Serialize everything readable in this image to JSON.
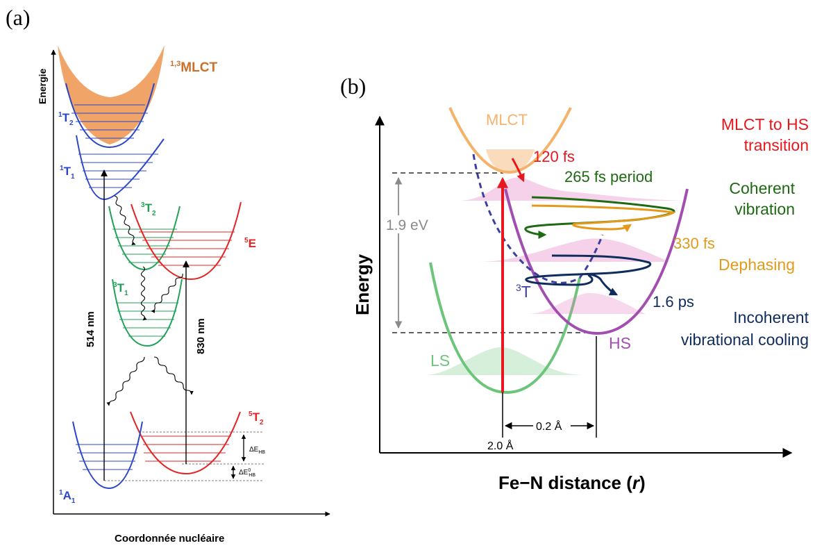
{
  "panel_a": {
    "tag": "(a)",
    "y_axis_label": "Energie",
    "x_axis_label": "Coordonnée nucléaire",
    "states": {
      "mlct": {
        "sup": "1,3",
        "main": "MLCT"
      },
      "t2_singlet": {
        "sup": "1",
        "main": "T",
        "sub": "2"
      },
      "t1_singlet": {
        "sup": "1",
        "main": "T",
        "sub": "1"
      },
      "t2_triplet": {
        "sup": "3",
        "main": "T",
        "sub": "2"
      },
      "t1_triplet": {
        "sup": "3",
        "main": "T",
        "sub": "1"
      },
      "e_quintet": {
        "sup": "5",
        "main": "E"
      },
      "t2_quintet": {
        "sup": "5",
        "main": "T",
        "sub": "2"
      },
      "a1_singlet": {
        "sup": "1",
        "main": "A",
        "sub": "1"
      }
    },
    "wavelength_514": "514 nm",
    "wavelength_830": "830 nm",
    "delta_hb": {
      "main": "ΔE",
      "sub": "HB"
    },
    "delta0_hb": {
      "main": "ΔE",
      "sup": "0",
      "sub": "HB"
    },
    "colors": {
      "blue": "#2b46c8",
      "green": "#1fa257",
      "red": "#e32424",
      "orange": "#f09a57",
      "mlct_text": "#c8702c"
    }
  },
  "panel_b": {
    "tag": "(b)",
    "y_axis_label": "Energy",
    "x_axis_label_main": "Fe−N distance (",
    "x_axis_label_var": "r",
    "x_axis_label_end": ")",
    "label_mlct": "MLCT",
    "label_ls": "LS",
    "label_hs": "HS",
    "label_3t_sup": "3",
    "label_3t_main": "T",
    "gap_energy": "1.9 eV",
    "time_120fs": "120 fs",
    "period_265": "265 fs period",
    "time_330fs": "330 fs",
    "time_16ps": "1.6 ps",
    "mlct_to_hs_line1": "MLCT to HS",
    "mlct_to_hs_line2": "transition",
    "coherent_line1": "Coherent",
    "coherent_line2": "vibration",
    "dephasing": "Dephasing",
    "incoherent_line1": "Incoherent",
    "incoherent_line2": "vibrational cooling",
    "r_ls": "2.0 Å",
    "delta_r": "0.2 Å",
    "colors": {
      "orange": "#f5b26b",
      "green": "#6cc57a",
      "purple": "#a24db0",
      "red": "#e8171d",
      "dark_green": "#1d6a12",
      "navy": "#0e2c5c",
      "dash_blue": "#3c3fa0",
      "gray": "#8a8a8a",
      "amber": "#e39a1b"
    }
  }
}
